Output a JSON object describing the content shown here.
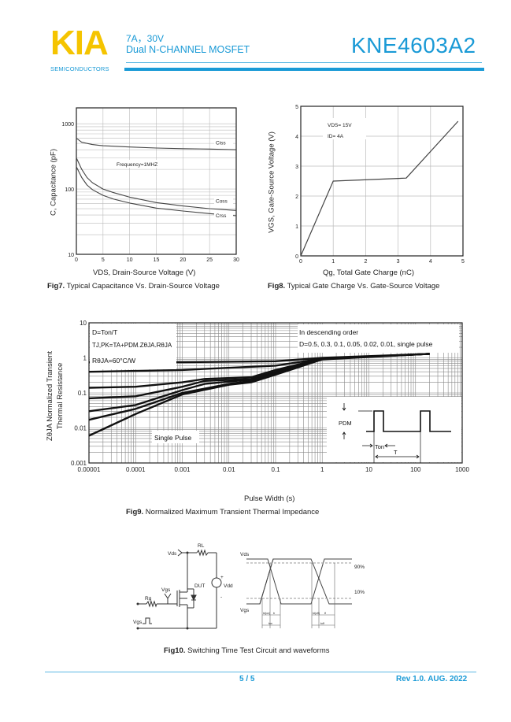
{
  "header": {
    "logo_text": "KIA",
    "logo_sub": "SEMICONDUCTORS",
    "rating": "7A，30V",
    "device_type": "Dual N-CHANNEL MOSFET",
    "part_number": "KNE4603A2",
    "brand_color": "#f5c400",
    "accent_color": "#1a9ad6"
  },
  "fig7": {
    "caption_label": "Fig7.",
    "caption_text": " Typical Capacitance Vs. Drain-Source Voltage",
    "annotation": "Frequency=1MHZ"
  },
  "fig8": {
    "caption_label": "Fig8.",
    "caption_text": " Typical Gate Charge Vs. Gate-Source Voltage",
    "annotation_vds": "VDS= 15V",
    "annotation_id": "ID= 4A"
  },
  "fig9": {
    "caption_label": "Fig9.",
    "caption_text": " Normalized Maximum Transient Thermal Impedance",
    "legend_line1": "D=Ton/T",
    "legend_line2": "TJ,PK=TA+PDM.ZθJA.RθJA",
    "legend_line3": "RθJA=60°C/W",
    "order_line1": "In descending order",
    "order_line2": "D=0.5, 0.3, 0.1, 0.05, 0.02, 0.01, single pulse",
    "single_pulse_label": "Single Pulse",
    "inset_pdm": "PDM",
    "inset_ton": "Ton",
    "inset_t": "T"
  },
  "fig10": {
    "caption_label": "Fig10.",
    "caption_text": " Switching Time Test Circuit and waveforms",
    "circuit": {
      "vds": "Vds",
      "rl": "RL",
      "vgs": "Vgs",
      "dut": "DUT",
      "vdd": "Vdd",
      "rg": "Rg",
      "vgs_pulse": "Vgs",
      "plus": "+",
      "minus": "-"
    },
    "waveform": {
      "vds": "Vds",
      "vgs": "Vgs",
      "p90": "90%",
      "p10": "10%",
      "tdon": "td(on)",
      "tr": "tr",
      "ton": "ton",
      "tdoff": "td(off)",
      "tf": "tf",
      "toff": "toff"
    }
  },
  "footer": {
    "page": "5 / 5",
    "revision": "Rev 1.0. AUG. 2022"
  },
  "chart_data": [
    {
      "type": "line",
      "title": "",
      "xlabel": "VDS, Drain-Source Voltage (V)",
      "ylabel": "C, Capacitance (pF)",
      "xlim": [
        0,
        30
      ],
      "ylim": [
        10,
        1750
      ],
      "yscale": "log",
      "xticks": [
        "0",
        "5",
        "10",
        "15",
        "20",
        "25",
        "30"
      ],
      "yticks": [
        "10",
        "100",
        "1000"
      ],
      "grid": true,
      "series": [
        {
          "name": "Ciss",
          "x": [
            0,
            1,
            3,
            5,
            10,
            15,
            20,
            25,
            30
          ],
          "y": [
            600,
            520,
            480,
            460,
            440,
            425,
            415,
            410,
            400
          ]
        },
        {
          "name": "Coss",
          "x": [
            0,
            1,
            2,
            3,
            5,
            7,
            10,
            15,
            20,
            25,
            30
          ],
          "y": [
            300,
            200,
            150,
            125,
            100,
            88,
            75,
            62,
            55,
            50,
            47
          ]
        },
        {
          "name": "Crss",
          "x": [
            0,
            1,
            2,
            3,
            5,
            7,
            10,
            15,
            20,
            25,
            30
          ],
          "y": [
            220,
            150,
            115,
            98,
            80,
            70,
            61,
            51,
            46,
            42,
            39
          ]
        }
      ]
    },
    {
      "type": "line",
      "title": "",
      "xlabel": "Qg, Total Gate Charge (nC)",
      "ylabel": "VGS, Gate-Source Voltage (V)",
      "xlim": [
        0,
        5
      ],
      "ylim": [
        0,
        5
      ],
      "xticks": [
        "0",
        "1",
        "2",
        "3",
        "4",
        "5"
      ],
      "yticks": [
        "0",
        "1",
        "2",
        "3",
        "4",
        "5"
      ],
      "grid": true,
      "series": [
        {
          "x": [
            0,
            1.0,
            3.25,
            4.85
          ],
          "y": [
            0,
            2.5,
            2.6,
            4.5
          ]
        }
      ]
    },
    {
      "type": "line",
      "title": "",
      "xlabel": "Pulse Width (s)",
      "ylabel": "ZθJA Normalized Transient Thermal Resistance",
      "xscale": "log",
      "yscale": "log",
      "xlim": [
        1e-05,
        1000
      ],
      "ylim": [
        0.001,
        10
      ],
      "xticks": [
        "0.00001",
        "0.0001",
        "0.001",
        "0.01",
        "0.1",
        "1",
        "10",
        "100",
        "1000"
      ],
      "yticks": [
        "0.001",
        "0.01",
        "0.1",
        "1",
        "10"
      ],
      "grid": true,
      "series": [
        {
          "name": "D=0.5",
          "x": [
            1e-05,
            0.001,
            0.1,
            1,
            200
          ],
          "y": [
            0.75,
            0.75,
            0.8,
            1.0,
            1.3
          ]
        },
        {
          "name": "D=0.3",
          "x": [
            1e-05,
            0.001,
            0.1,
            1,
            200
          ],
          "y": [
            0.4,
            0.45,
            0.6,
            0.95,
            1.3
          ]
        },
        {
          "name": "D=0.1",
          "x": [
            1e-05,
            0.0001,
            0.001,
            0.003,
            0.03,
            0.1,
            1,
            200
          ],
          "y": [
            0.14,
            0.15,
            0.2,
            0.25,
            0.28,
            0.45,
            0.95,
            1.3
          ]
        },
        {
          "name": "D=0.05",
          "x": [
            1e-05,
            0.0001,
            0.001,
            0.003,
            0.03,
            0.1,
            1,
            200
          ],
          "y": [
            0.07,
            0.08,
            0.15,
            0.22,
            0.25,
            0.4,
            0.95,
            1.3
          ]
        },
        {
          "name": "D=0.02",
          "x": [
            1e-05,
            0.0001,
            0.001,
            0.003,
            0.03,
            0.1,
            1,
            200
          ],
          "y": [
            0.03,
            0.045,
            0.12,
            0.18,
            0.24,
            0.38,
            0.95,
            1.3
          ]
        },
        {
          "name": "D=0.01",
          "x": [
            1e-05,
            0.0001,
            0.001,
            0.01,
            0.03,
            0.1,
            1,
            200
          ],
          "y": [
            0.017,
            0.035,
            0.1,
            0.18,
            0.22,
            0.36,
            0.92,
            1.3
          ]
        },
        {
          "name": "single pulse",
          "x": [
            1e-05,
            0.0001,
            0.001,
            0.01,
            0.03,
            0.1,
            1,
            200
          ],
          "y": [
            0.006,
            0.025,
            0.09,
            0.17,
            0.2,
            0.33,
            0.9,
            1.3
          ]
        }
      ]
    }
  ]
}
